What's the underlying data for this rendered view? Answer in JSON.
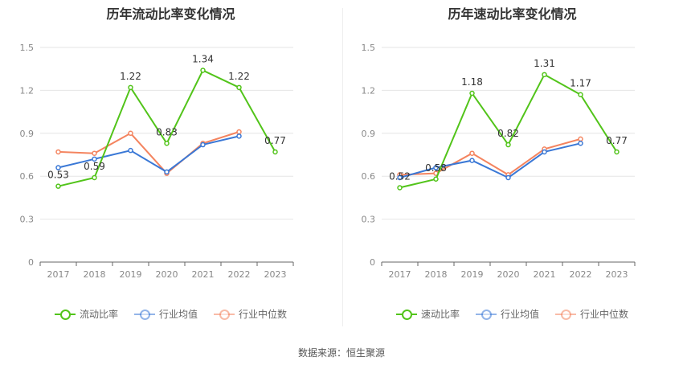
{
  "source": "数据来源：恒生聚源",
  "chart_data": [
    {
      "type": "line",
      "title": "历年流动比率变化情况",
      "categories": [
        "2017",
        "2018",
        "2019",
        "2020",
        "2021",
        "2022",
        "2023"
      ],
      "ylim": [
        0,
        1.5
      ],
      "yticks": [
        "0",
        "0.3",
        "0.6",
        "0.9",
        "1.2",
        "1.5"
      ],
      "grid": true,
      "legend_position": "bottom",
      "series": [
        {
          "name": "流动比率",
          "color": "#52c41a",
          "values": [
            0.53,
            0.59,
            1.22,
            0.83,
            1.34,
            1.22,
            0.77
          ],
          "labels": [
            "0.53",
            "0.59",
            "1.22",
            "0.83",
            "1.34",
            "1.22",
            "0.77"
          ]
        },
        {
          "name": "行业均值",
          "color": "#3a78d6",
          "values": [
            0.66,
            0.72,
            0.78,
            0.63,
            0.82,
            0.88,
            null
          ]
        },
        {
          "name": "行业中位数",
          "color": "#f4845f",
          "values": [
            0.77,
            0.76,
            0.9,
            0.62,
            0.83,
            0.91,
            null
          ]
        }
      ]
    },
    {
      "type": "line",
      "title": "历年速动比率变化情况",
      "categories": [
        "2017",
        "2018",
        "2019",
        "2020",
        "2021",
        "2022",
        "2023"
      ],
      "ylim": [
        0,
        1.5
      ],
      "yticks": [
        "0",
        "0.3",
        "0.6",
        "0.9",
        "1.2",
        "1.5"
      ],
      "grid": true,
      "legend_position": "bottom",
      "series": [
        {
          "name": "速动比率",
          "color": "#52c41a",
          "values": [
            0.52,
            0.58,
            1.18,
            0.82,
            1.31,
            1.17,
            0.77
          ],
          "labels": [
            "0.52",
            "0.58",
            "1.18",
            "0.82",
            "1.31",
            "1.17",
            "0.77"
          ]
        },
        {
          "name": "行业均值",
          "color": "#3a78d6",
          "values": [
            0.59,
            0.66,
            0.71,
            0.59,
            0.77,
            0.83,
            null
          ]
        },
        {
          "name": "行业中位数",
          "color": "#f4845f",
          "values": [
            0.61,
            0.62,
            0.76,
            0.61,
            0.79,
            0.86,
            null
          ]
        }
      ]
    }
  ]
}
